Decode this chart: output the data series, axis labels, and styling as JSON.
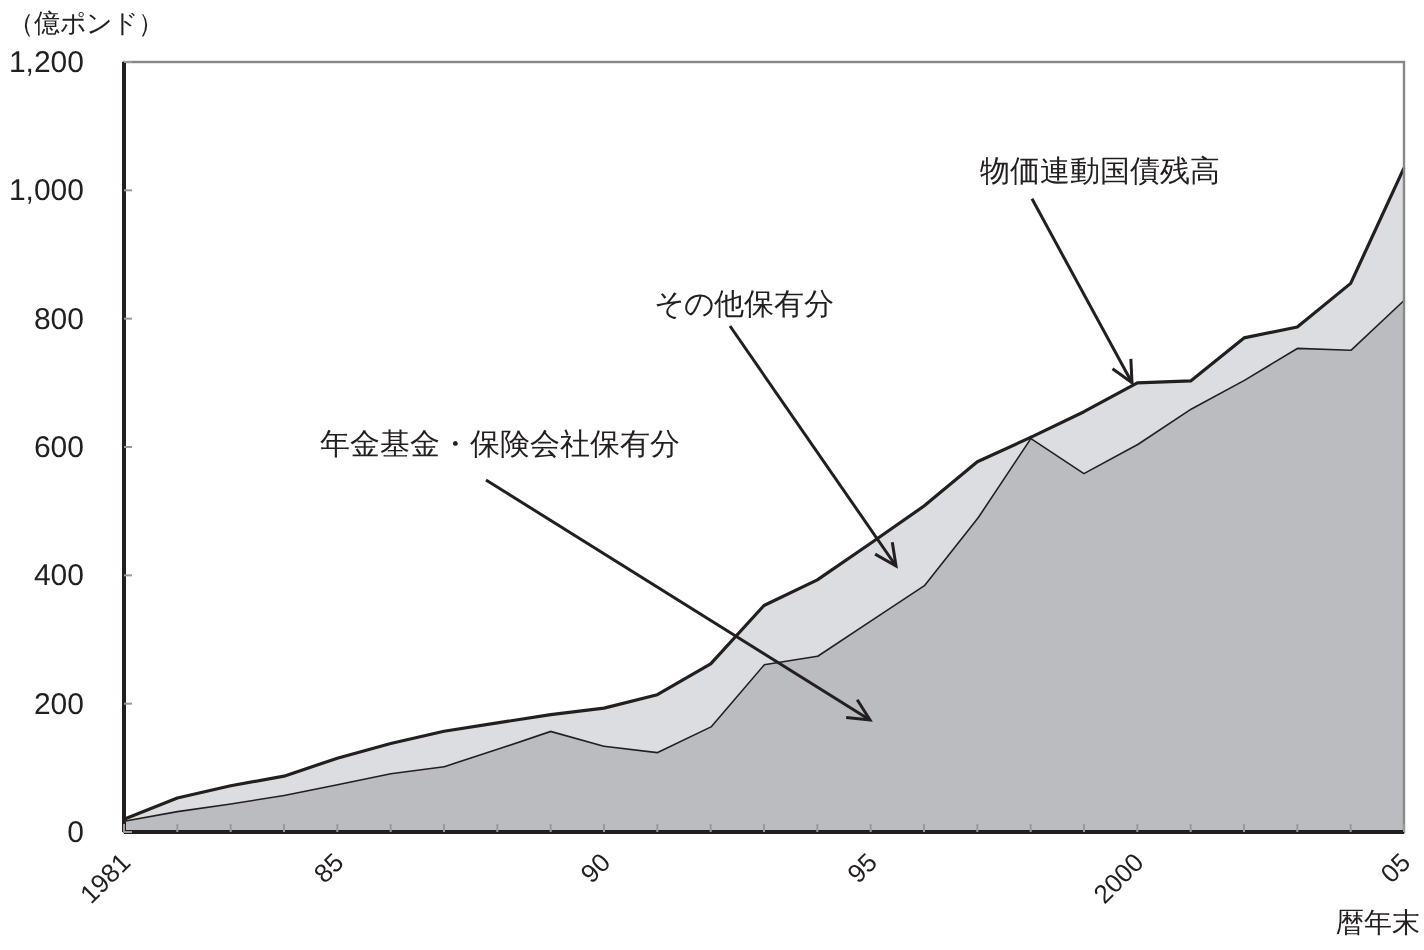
{
  "chart_data": {
    "type": "area",
    "stacked": true,
    "x": [
      1981,
      1982,
      1983,
      1984,
      1985,
      1986,
      1987,
      1988,
      1989,
      1990,
      1991,
      1992,
      1993,
      1994,
      1995,
      1996,
      1997,
      1998,
      1999,
      2000,
      2001,
      2002,
      2003,
      2004,
      2005
    ],
    "series": [
      {
        "color": "#bbbcc0",
        "values": [
          18,
          33,
          45,
          58,
          75,
          92,
          103,
          130,
          158,
          135,
          125,
          165,
          262,
          275,
          330,
          385,
          490,
          615,
          560,
          605,
          660,
          705,
          755,
          752,
          830
        ]
      },
      {
        "color": "#dcdde0",
        "values": [
          2,
          20,
          27,
          29,
          40,
          46,
          54,
          40,
          25,
          58,
          89,
          97,
          91,
          118,
          120,
          123,
          87,
          0,
          95,
          95,
          43,
          65,
          32,
          103,
          205
        ]
      }
    ],
    "ylabel": "（億ポンド）",
    "xlabel": "暦年末",
    "xlim": [
      1981,
      2005
    ],
    "xticks": [
      {
        "value": 1981,
        "label": "1981"
      },
      {
        "value": 1982,
        "label": null
      },
      {
        "value": 1983,
        "label": null
      },
      {
        "value": 1984,
        "label": null
      },
      {
        "value": 1985,
        "label": "85"
      },
      {
        "value": 1986,
        "label": null
      },
      {
        "value": 1987,
        "label": null
      },
      {
        "value": 1988,
        "label": null
      },
      {
        "value": 1989,
        "label": null
      },
      {
        "value": 1990,
        "label": "90"
      },
      {
        "value": 1991,
        "label": null
      },
      {
        "value": 1992,
        "label": null
      },
      {
        "value": 1993,
        "label": null
      },
      {
        "value": 1994,
        "label": null
      },
      {
        "value": 1995,
        "label": "95"
      },
      {
        "value": 1996,
        "label": null
      },
      {
        "value": 1997,
        "label": null
      },
      {
        "value": 1998,
        "label": null
      },
      {
        "value": 1999,
        "label": null
      },
      {
        "value": 2000,
        "label": "2000"
      },
      {
        "value": 2001,
        "label": null
      },
      {
        "value": 2002,
        "label": null
      },
      {
        "value": 2003,
        "label": null
      },
      {
        "value": 2004,
        "label": null
      },
      {
        "value": 2005,
        "label": "05"
      }
    ],
    "ylim": [
      0,
      1200
    ],
    "yticks": [
      0,
      200,
      400,
      600,
      800,
      {
        "value": 1000,
        "label": "1,000"
      },
      {
        "value": 1200,
        "label": "1,200"
      }
    ],
    "annotations": [
      "年金基金・保険会社保有分",
      "その他保有分",
      {
        "text": "物価連動国債残高",
        "x": 1999.9,
        "y": 700
      }
    ]
  }
}
